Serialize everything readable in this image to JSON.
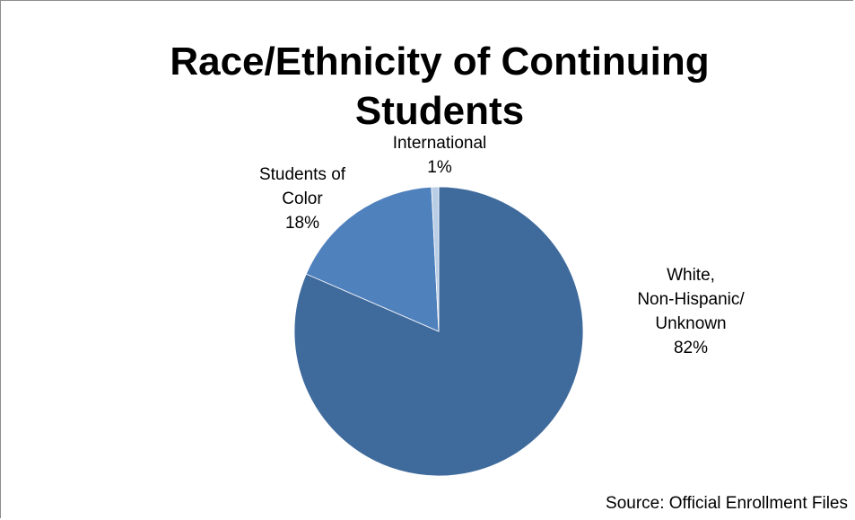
{
  "chart_data": {
    "type": "pie",
    "title_lines": [
      "Race/Ethnicity of Continuing",
      "Students"
    ],
    "slices": [
      {
        "label_lines": [
          "White,",
          "Non-Hispanic/",
          "Unknown"
        ],
        "pct_label": "82%",
        "value": 81.5,
        "color": "#3f6a9c"
      },
      {
        "label_lines": [
          "Students of",
          "Color"
        ],
        "pct_label": "18%",
        "value": 17.7,
        "color": "#4f81bd"
      },
      {
        "label_lines": [
          "International"
        ],
        "pct_label": "1%",
        "value": 0.8,
        "color": "#b9cde5"
      }
    ],
    "source": "Source: Official Enrollment Files"
  }
}
